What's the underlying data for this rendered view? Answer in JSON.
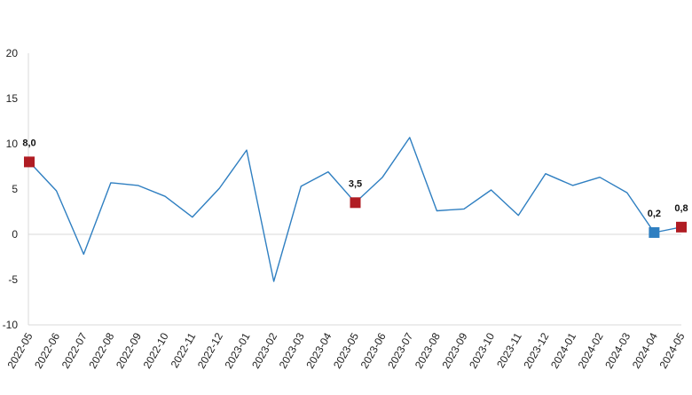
{
  "chart_data": {
    "type": "line",
    "x": [
      "2022-05",
      "2022-06",
      "2022-07",
      "2022-08",
      "2022-09",
      "2022-10",
      "2022-11",
      "2022-12",
      "2023-01",
      "2023-02",
      "2023-03",
      "2023-04",
      "2023-05",
      "2023-06",
      "2023-07",
      "2023-08",
      "2023-09",
      "2023-10",
      "2023-11",
      "2023-12",
      "2024-01",
      "2024-02",
      "2024-03",
      "2024-04",
      "2024-05"
    ],
    "series": [
      {
        "values": [
          8.0,
          4.8,
          -2.2,
          5.7,
          5.4,
          4.2,
          1.9,
          5.1,
          9.3,
          -5.2,
          5.3,
          6.9,
          3.5,
          6.3,
          10.7,
          2.6,
          2.8,
          4.9,
          2.1,
          6.7,
          5.4,
          6.3,
          4.6,
          0.2,
          0.8
        ]
      }
    ],
    "ylim": [
      -10,
      20
    ],
    "yticks": [
      "-10",
      "-5",
      "0",
      "5",
      "10",
      "15",
      "20"
    ],
    "highlights": [
      {
        "index": 0,
        "label": "8,0",
        "color": "#b01c23"
      },
      {
        "index": 12,
        "label": "3,5",
        "color": "#b01c23"
      },
      {
        "index": 23,
        "label": "0,2",
        "color": "#2f7fc1"
      },
      {
        "index": 24,
        "label": "0,8",
        "color": "#b01c23"
      }
    ],
    "line_color": "#2f7fc1",
    "grid": false
  }
}
